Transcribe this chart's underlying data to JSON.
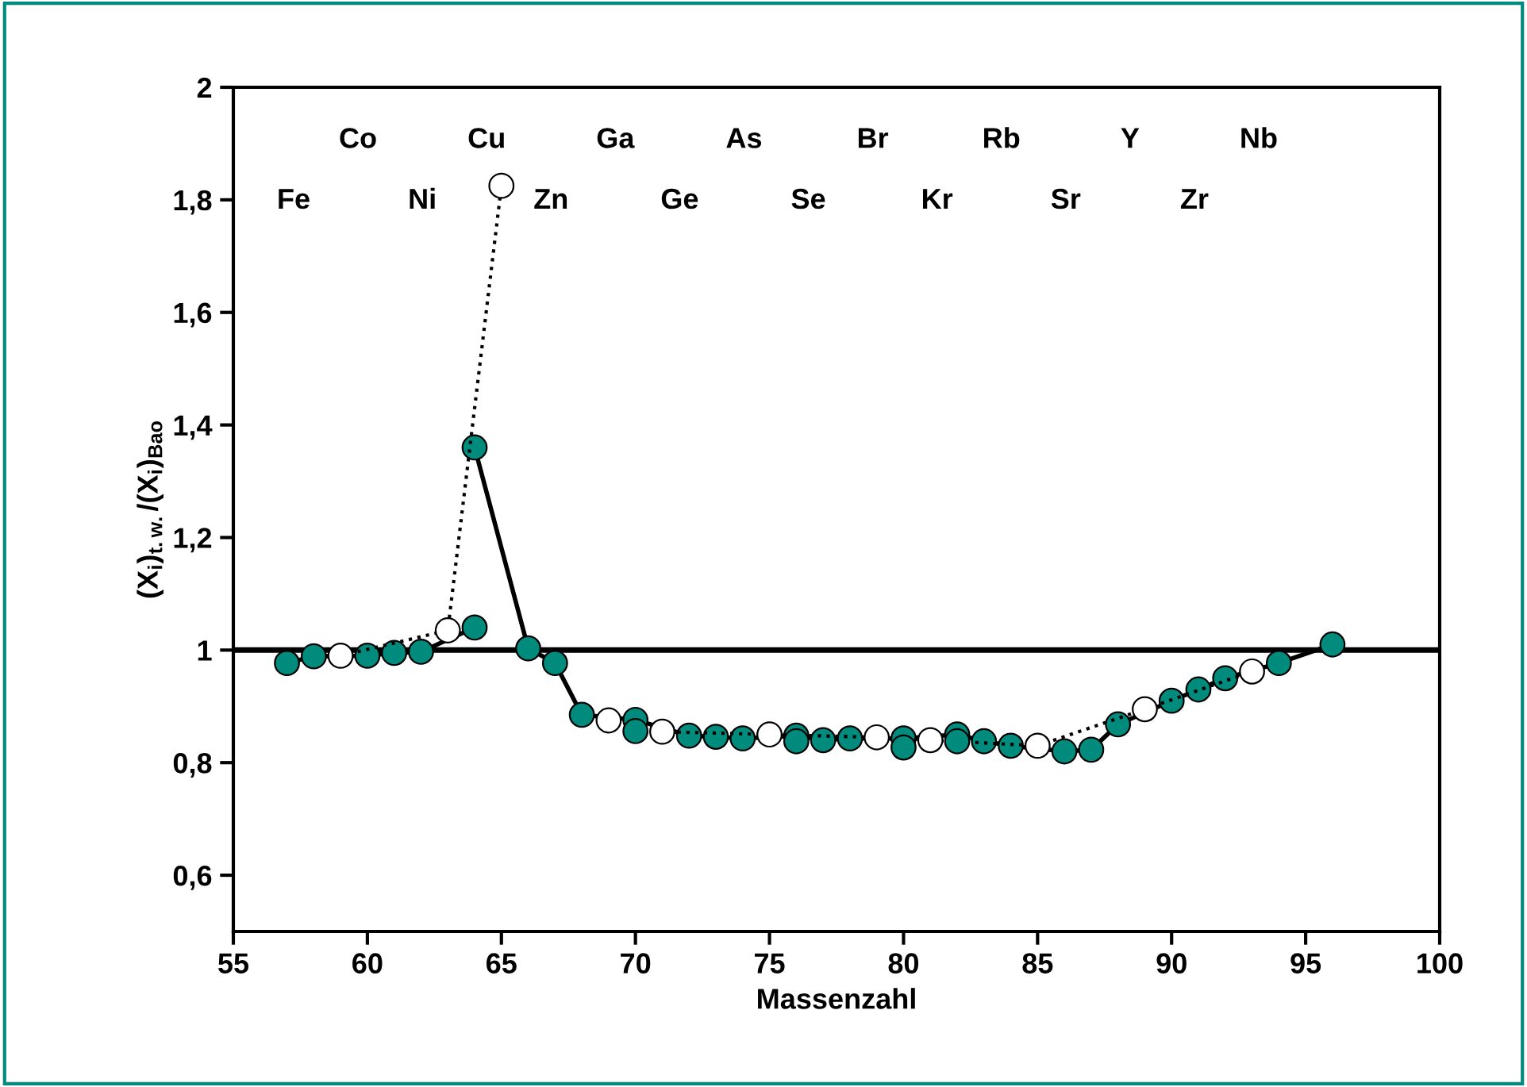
{
  "chart_data": {
    "type": "line",
    "xlabel": "Massenzahl",
    "ylabel": "(X$_{i}$)$_{t.w.}$/(X$_{i}$)$_{Bao}$",
    "xlim": [
      55,
      100
    ],
    "xticks": [
      55,
      60,
      65,
      70,
      75,
      80,
      85,
      90,
      95,
      100
    ],
    "ylim": [
      0.5,
      2
    ],
    "yticks": [
      {
        "value": 0.6,
        "label": "0,6"
      },
      {
        "value": 0.8,
        "label": "0,8"
      },
      {
        "value": 1,
        "label": "1"
      },
      {
        "value": 1.2,
        "label": "1,2"
      },
      {
        "value": 1.4,
        "label": "1,4"
      },
      {
        "value": 1.6,
        "label": "1,6"
      },
      {
        "value": 1.8,
        "label": "1,8"
      },
      {
        "value": 2,
        "label": "2"
      }
    ],
    "grid": false,
    "legend": false,
    "series": [
      {
        "color": "#008b7d",
        "marker": "circle",
        "line_style": "solid",
        "x": [
          57,
          58,
          60,
          61,
          62,
          64
        ],
        "values": [
          0.977,
          0.989,
          0.99,
          0.995,
          0.997,
          1.04
        ]
      },
      {
        "color": "#008b7d",
        "marker": "circle",
        "line_style": "solid",
        "x": [
          64,
          66,
          67,
          68,
          70,
          72,
          73,
          74,
          76,
          77,
          78,
          80,
          82,
          83,
          84,
          86,
          87,
          88,
          90,
          91,
          92,
          94,
          96
        ],
        "values": [
          1.36,
          1.003,
          0.977,
          0.885,
          0.876,
          0.848,
          0.846,
          0.843,
          0.848,
          0.84,
          0.843,
          0.843,
          0.85,
          0.838,
          0.83,
          0.82,
          0.823,
          0.868,
          0.91,
          0.93,
          0.95,
          0.977,
          1.01
        ]
      },
      {
        "type": "scatter",
        "color": "#008b7d",
        "marker": "circle",
        "x": [
          70,
          76,
          80,
          82
        ],
        "values": [
          0.856,
          0.838,
          0.827,
          0.838
        ]
      },
      {
        "color": "#ffffff",
        "marker": "circle",
        "line_style": "dotted",
        "x": [
          59,
          63,
          65,
          67,
          69,
          71,
          75,
          79,
          81,
          85,
          89,
          93
        ],
        "values": [
          0.99,
          1.035,
          1.825,
          null,
          0.875,
          0.855,
          0.85,
          0.845,
          0.84,
          0.83,
          0.895,
          0.962
        ]
      }
    ],
    "ref_lines": [
      {
        "axis": "y",
        "value": 1,
        "color": "#000000",
        "line_style": "solid"
      }
    ],
    "annotations": [
      "Fe",
      "Co",
      "Ni",
      "Cu",
      "Zn",
      "Ga",
      "Ge",
      "As",
      "Se",
      "Br",
      "Kr",
      "Rb",
      "Sr",
      "Y",
      "Zr",
      "Nb"
    ]
  }
}
